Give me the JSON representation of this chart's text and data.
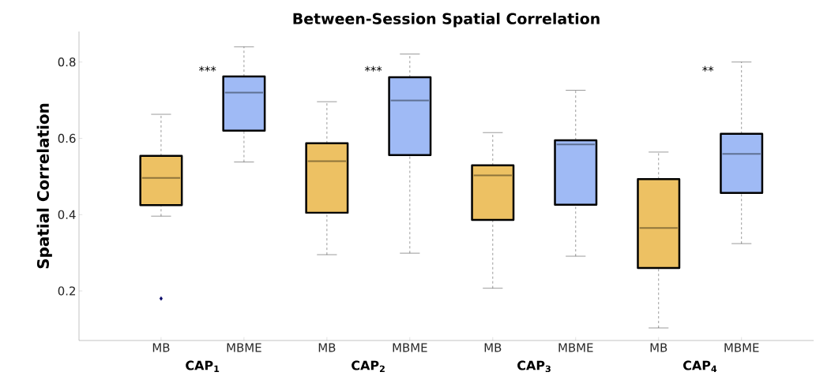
{
  "chart_data": {
    "type": "box",
    "title": "Between-Session Spatial Correlation",
    "ylabel": "Spatial Correlation",
    "categories": [
      "MB",
      "MBME",
      "MB",
      "MBME",
      "MB",
      "MBME",
      "MB",
      "MBME"
    ],
    "colors": [
      "#edc163",
      "#9fbaf5",
      "#edc163",
      "#9fbaf5",
      "#edc163",
      "#9fbaf5",
      "#edc163",
      "#9fbaf5"
    ],
    "boxes": [
      {
        "low": 0.396,
        "q1": 0.425,
        "median": 0.496,
        "q3": 0.554,
        "high": 0.663,
        "outliers": [
          0.18
        ]
      },
      {
        "low": 0.538,
        "q1": 0.62,
        "median": 0.72,
        "q3": 0.762,
        "high": 0.84
      },
      {
        "low": 0.295,
        "q1": 0.405,
        "median": 0.54,
        "q3": 0.587,
        "high": 0.696
      },
      {
        "low": 0.299,
        "q1": 0.556,
        "median": 0.699,
        "q3": 0.76,
        "high": 0.821
      },
      {
        "low": 0.207,
        "q1": 0.386,
        "median": 0.503,
        "q3": 0.529,
        "high": 0.615
      },
      {
        "low": 0.291,
        "q1": 0.426,
        "median": 0.584,
        "q3": 0.595,
        "high": 0.726
      },
      {
        "low": 0.103,
        "q1": 0.26,
        "median": 0.365,
        "q3": 0.493,
        "high": 0.564
      },
      {
        "low": 0.324,
        "q1": 0.457,
        "median": 0.559,
        "q3": 0.612,
        "high": 0.8
      }
    ],
    "ylim": [
      0.07,
      0.88
    ],
    "yticks": [
      0.2,
      0.4,
      0.6,
      0.8
    ],
    "annotations": [
      "CAP$_{1}$",
      "CAP$_{2}$",
      "CAP$_{3}$",
      "CAP$_{4}$",
      "***",
      "***",
      "**"
    ]
  }
}
